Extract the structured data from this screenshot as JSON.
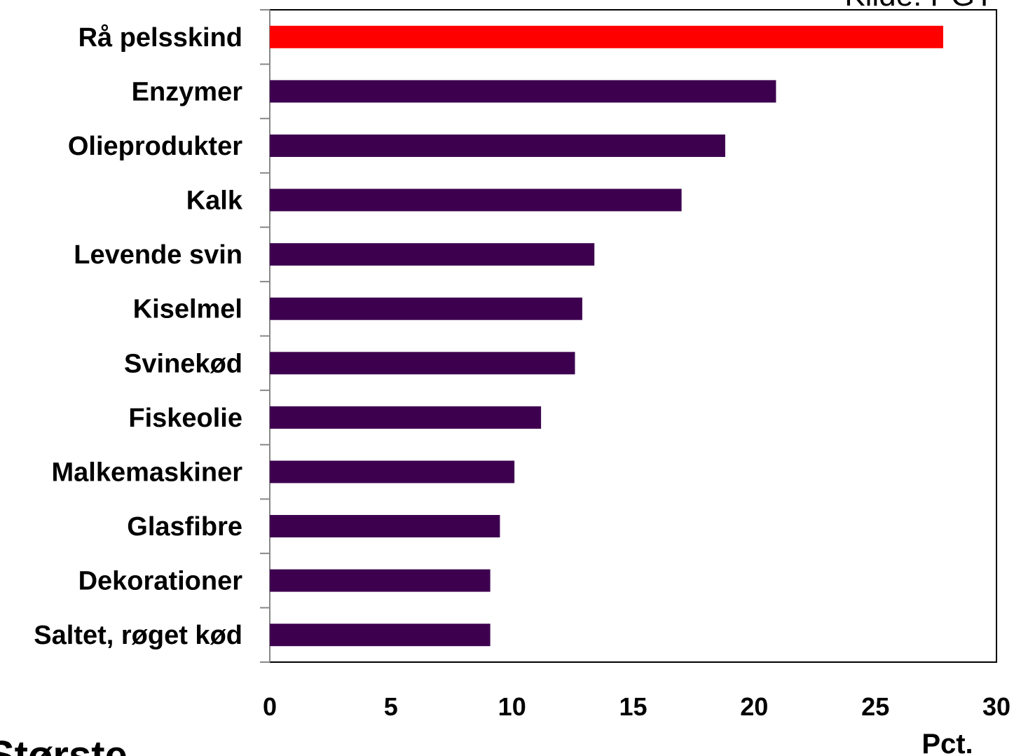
{
  "source_text": "Kilde: PGT",
  "corner_text": "Største",
  "colors": {
    "highlight": "#ff0000",
    "bar": "#3d004f"
  },
  "chart_data": {
    "type": "bar",
    "orientation": "horizontal",
    "categories": [
      "Rå pelsskind",
      "Enzymer",
      "Olieprodukter",
      "Kalk",
      "Levende svin",
      "Kiselmel",
      "Svinekød",
      "Fiskeolie",
      "Malkemaskiner",
      "Glasfibre",
      "Dekorationer",
      "Saltet, røget kød"
    ],
    "values": [
      27.8,
      20.9,
      18.8,
      17.0,
      13.4,
      12.9,
      12.6,
      11.2,
      10.1,
      9.5,
      9.1,
      9.1
    ],
    "highlight_index": 0,
    "xlim": [
      0,
      30
    ],
    "xticks": [
      0,
      5,
      10,
      15,
      20,
      25,
      30
    ],
    "xlabel": "Pct.",
    "title": "",
    "grid": false
  }
}
